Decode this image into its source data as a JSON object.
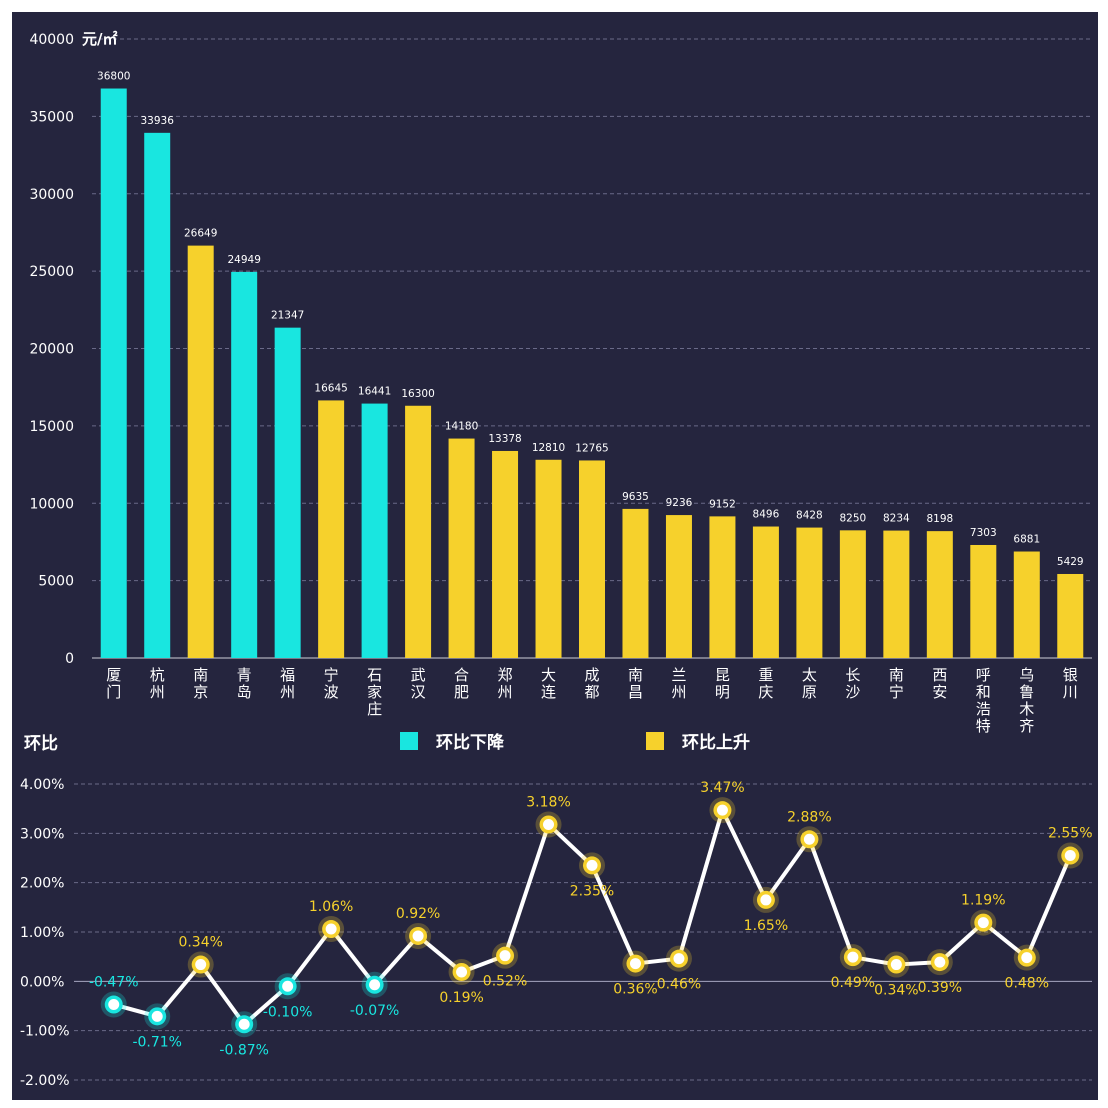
{
  "colors": {
    "background": "#25253e",
    "decrease": "#19e6e0",
    "increase": "#f6d12c",
    "axis_text": "#ffffff",
    "grid": "#6a6a88",
    "line": "#ffffff"
  },
  "legend": {
    "decrease_label": "环比下降",
    "increase_label": "环比上升"
  },
  "chart_data": [
    {
      "type": "bar",
      "ylabel": "元/㎡",
      "ylim": [
        0,
        40000
      ],
      "yticks": [
        "0",
        "5000",
        "10000",
        "15000",
        "20000",
        "25000",
        "30000",
        "35000",
        "40000"
      ],
      "grid": true,
      "legend_position": "bottom-center",
      "categories": [
        "厦门",
        "杭州",
        "南京",
        "青岛",
        "福州",
        "宁波",
        "石家庄",
        "武汉",
        "合肥",
        "郑州",
        "大连",
        "成都",
        "南昌",
        "兰州",
        "昆明",
        "重庆",
        "太原",
        "长沙",
        "南宁",
        "西安",
        "呼和浩特",
        "乌鲁木齐",
        "银川"
      ],
      "values": [
        36800,
        33936,
        26649,
        24949,
        21347,
        16645,
        16441,
        16300,
        14180,
        13378,
        12810,
        12765,
        9635,
        9236,
        9152,
        8496,
        8428,
        8250,
        8234,
        8198,
        7303,
        6881,
        5429
      ],
      "value_labels": [
        "36800",
        "33936",
        "26649",
        "24949",
        "21347",
        "16645",
        "16441",
        "16300",
        "14180",
        "13378",
        "12810",
        "12765",
        "9635",
        "9236",
        "9152",
        "8496",
        "8428",
        "8250",
        "8234",
        "8198",
        "7303",
        "6881",
        "5429"
      ],
      "trend": [
        "down",
        "down",
        "up",
        "down",
        "down",
        "up",
        "down",
        "up",
        "up",
        "up",
        "up",
        "up",
        "up",
        "up",
        "up",
        "up",
        "up",
        "up",
        "up",
        "up",
        "up",
        "up",
        "up"
      ]
    },
    {
      "type": "line",
      "title": "环比",
      "ylim": [
        -2,
        4
      ],
      "yticks": [
        "-2.00%",
        "-1.00%",
        "0.00%",
        "1.00%",
        "2.00%",
        "3.00%",
        "4.00%"
      ],
      "grid": true,
      "values": [
        -0.47,
        -0.71,
        0.34,
        -0.87,
        -0.1,
        1.06,
        -0.07,
        0.92,
        0.19,
        0.52,
        3.18,
        2.35,
        0.36,
        0.46,
        3.47,
        1.65,
        2.88,
        0.49,
        0.34,
        0.39,
        1.19,
        0.48,
        2.55
      ],
      "value_labels": [
        "-0.47%",
        "-0.71%",
        "0.34%",
        "-0.87%",
        "-0.10%",
        "1.06%",
        "-0.07%",
        "0.92%",
        "0.19%",
        "0.52%",
        "3.18%",
        "2.35%",
        "0.36%",
        "0.46%",
        "3.47%",
        "1.65%",
        "2.88%",
        "0.49%",
        "0.34%",
        "0.39%",
        "1.19%",
        "0.48%",
        "2.55%"
      ]
    }
  ]
}
